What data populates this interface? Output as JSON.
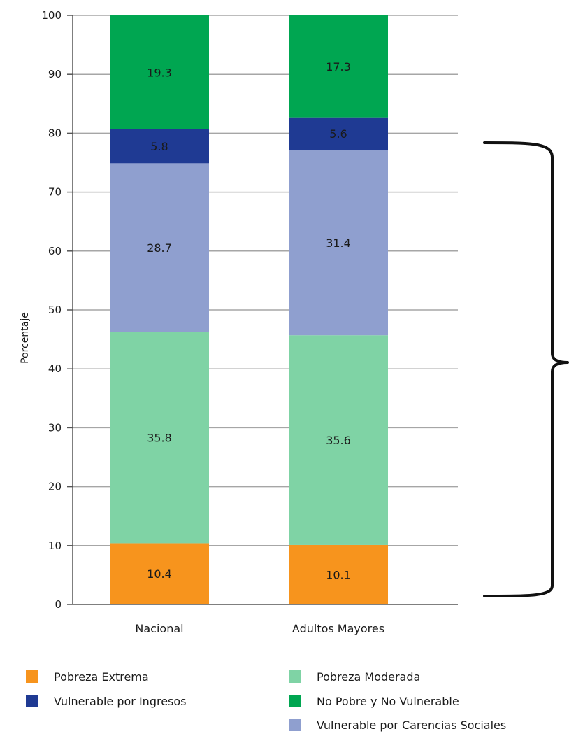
{
  "chart_data": {
    "type": "bar",
    "stacked": true,
    "categories": [
      "Nacional",
      "Adultos Mayores"
    ],
    "ylabel": "Porcentaje",
    "xlabel": "",
    "ylim": [
      0,
      100
    ],
    "yticks": [
      0,
      10,
      20,
      30,
      40,
      50,
      60,
      70,
      80,
      90,
      100
    ],
    "grid": "horizontal",
    "legend_position": "bottom",
    "series": [
      {
        "name": "Pobreza Extrema",
        "color": "#f7941d",
        "values": [
          10.4,
          10.1
        ]
      },
      {
        "name": "Pobreza Moderada",
        "color": "#7fd3a5",
        "values": [
          35.8,
          35.6
        ]
      },
      {
        "name": "Vulnerable por Carencias Sociales",
        "color": "#8f9fcf",
        "values": [
          28.7,
          31.4
        ]
      },
      {
        "name": "Vulnerable por Ingresos",
        "color": "#1f3a93",
        "values": [
          5.8,
          5.6
        ]
      },
      {
        "name": "No Pobre y No Vulnerable",
        "color": "#00a651",
        "values": [
          19.3,
          17.3
        ]
      }
    ],
    "annotation": "right-side curly brace spanning the first four series (0 to 80)"
  },
  "legend": {
    "items": [
      {
        "label": "Pobreza Extrema",
        "color": "#f7941d"
      },
      {
        "label": "Vulnerable por Ingresos",
        "color": "#1f3a93"
      },
      {
        "label": "Pobreza Moderada",
        "color": "#7fd3a5"
      },
      {
        "label": "No Pobre y No Vulnerable",
        "color": "#00a651"
      },
      {
        "label": "Vulnerable por Carencias Sociales",
        "color": "#8f9fcf"
      }
    ]
  }
}
